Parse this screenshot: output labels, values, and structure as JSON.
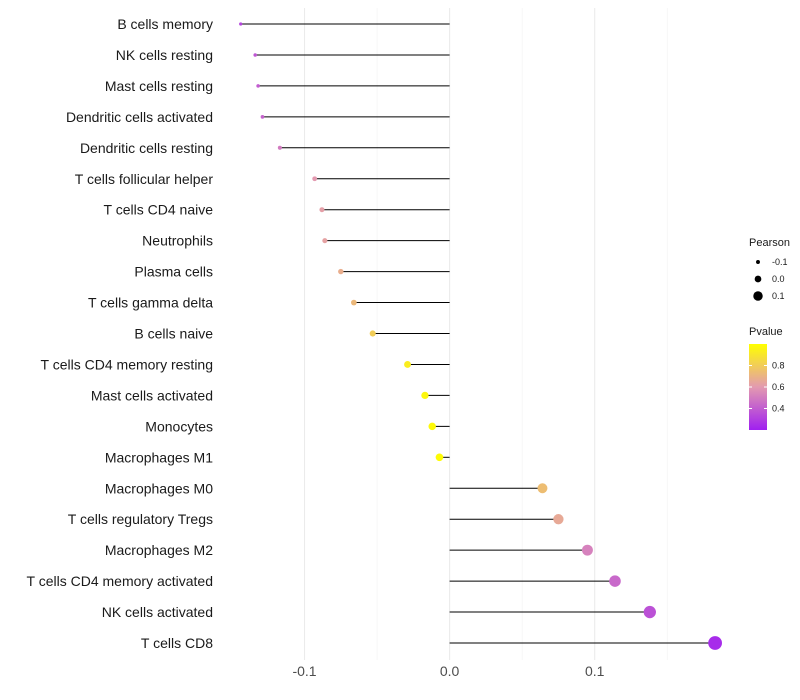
{
  "chart_data": {
    "type": "lollipop",
    "xlabel": "",
    "ylabel": "",
    "xlim": [
      -0.15,
      0.185
    ],
    "x_ticks": [
      -0.1,
      0.0,
      0.1
    ],
    "x_tick_labels": [
      "-0.1",
      "0.0",
      "0.1"
    ],
    "grid": true,
    "categories": [
      "B cells memory",
      "NK cells resting",
      "Mast cells resting",
      "Dendritic cells activated",
      "Dendritic cells resting",
      "T cells follicular helper",
      "T cells CD4 naive",
      "Neutrophils",
      "Plasma cells",
      "T cells gamma delta",
      "B cells naive",
      "T cells CD4 memory resting",
      "Mast cells activated",
      "Monocytes",
      "Macrophages M1",
      "Macrophages M0",
      "T cells regulatory  Tregs ",
      "Macrophages M2",
      "T cells CD4 memory activated",
      "NK cells activated",
      "T cells CD8"
    ],
    "pearson": [
      -0.144,
      -0.134,
      -0.132,
      -0.129,
      -0.117,
      -0.093,
      -0.088,
      -0.086,
      -0.075,
      -0.066,
      -0.053,
      -0.029,
      -0.017,
      -0.012,
      -0.007,
      0.064,
      0.075,
      0.095,
      0.114,
      0.138,
      0.183
    ],
    "pvalue": [
      0.32,
      0.38,
      0.4,
      0.42,
      0.5,
      0.6,
      0.62,
      0.63,
      0.68,
      0.72,
      0.8,
      0.93,
      0.97,
      0.98,
      0.99,
      0.74,
      0.66,
      0.52,
      0.44,
      0.36,
      0.24
    ],
    "baseline": 0.0,
    "legend_position": "right",
    "legend": {
      "size": {
        "title": "Pearson",
        "values": [
          -0.1,
          0.0,
          0.1
        ],
        "labels": [
          "-0.1",
          "0.0",
          "0.1"
        ]
      },
      "color": {
        "title": "Pvalue",
        "range": [
          0.2,
          1.0
        ],
        "ticks": [
          0.4,
          0.6,
          0.8
        ],
        "tick_labels": [
          "0.4",
          "0.6",
          "0.8"
        ],
        "low_color": "#a020f0",
        "mid_color": "#e39ab0",
        "high_color": "#ffff00"
      }
    }
  }
}
